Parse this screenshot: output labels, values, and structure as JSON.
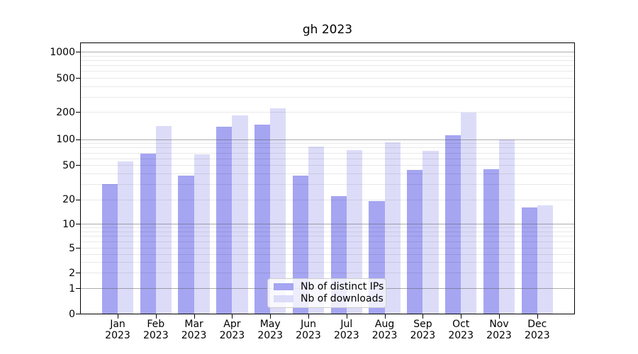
{
  "chart_data": {
    "type": "bar",
    "title": "gh 2023",
    "categories": [
      "Jan",
      "Feb",
      "Mar",
      "Apr",
      "May",
      "Jun",
      "Jul",
      "Aug",
      "Sep",
      "Oct",
      "Nov",
      "Dec"
    ],
    "year_label": "2023",
    "series": [
      {
        "name": "Nb of distinct IPs",
        "color": "#a5a5f2",
        "values": [
          30,
          68,
          38,
          137,
          144,
          38,
          22,
          19,
          44,
          110,
          45,
          16
        ]
      },
      {
        "name": "Nb of downloads",
        "color": "#dcdcf9",
        "values": [
          55,
          140,
          67,
          183,
          222,
          82,
          75,
          92,
          73,
          195,
          100,
          17
        ]
      }
    ],
    "yticks": [
      0,
      1,
      2,
      5,
      10,
      20,
      50,
      100,
      200,
      500,
      1000
    ],
    "ylim": [
      0,
      1300
    ],
    "yscale": "symlog",
    "grid": true,
    "legend_position": "lower center",
    "grid_major_color": "#b0b0b0",
    "grid_minor_color": "#ebebeb"
  }
}
